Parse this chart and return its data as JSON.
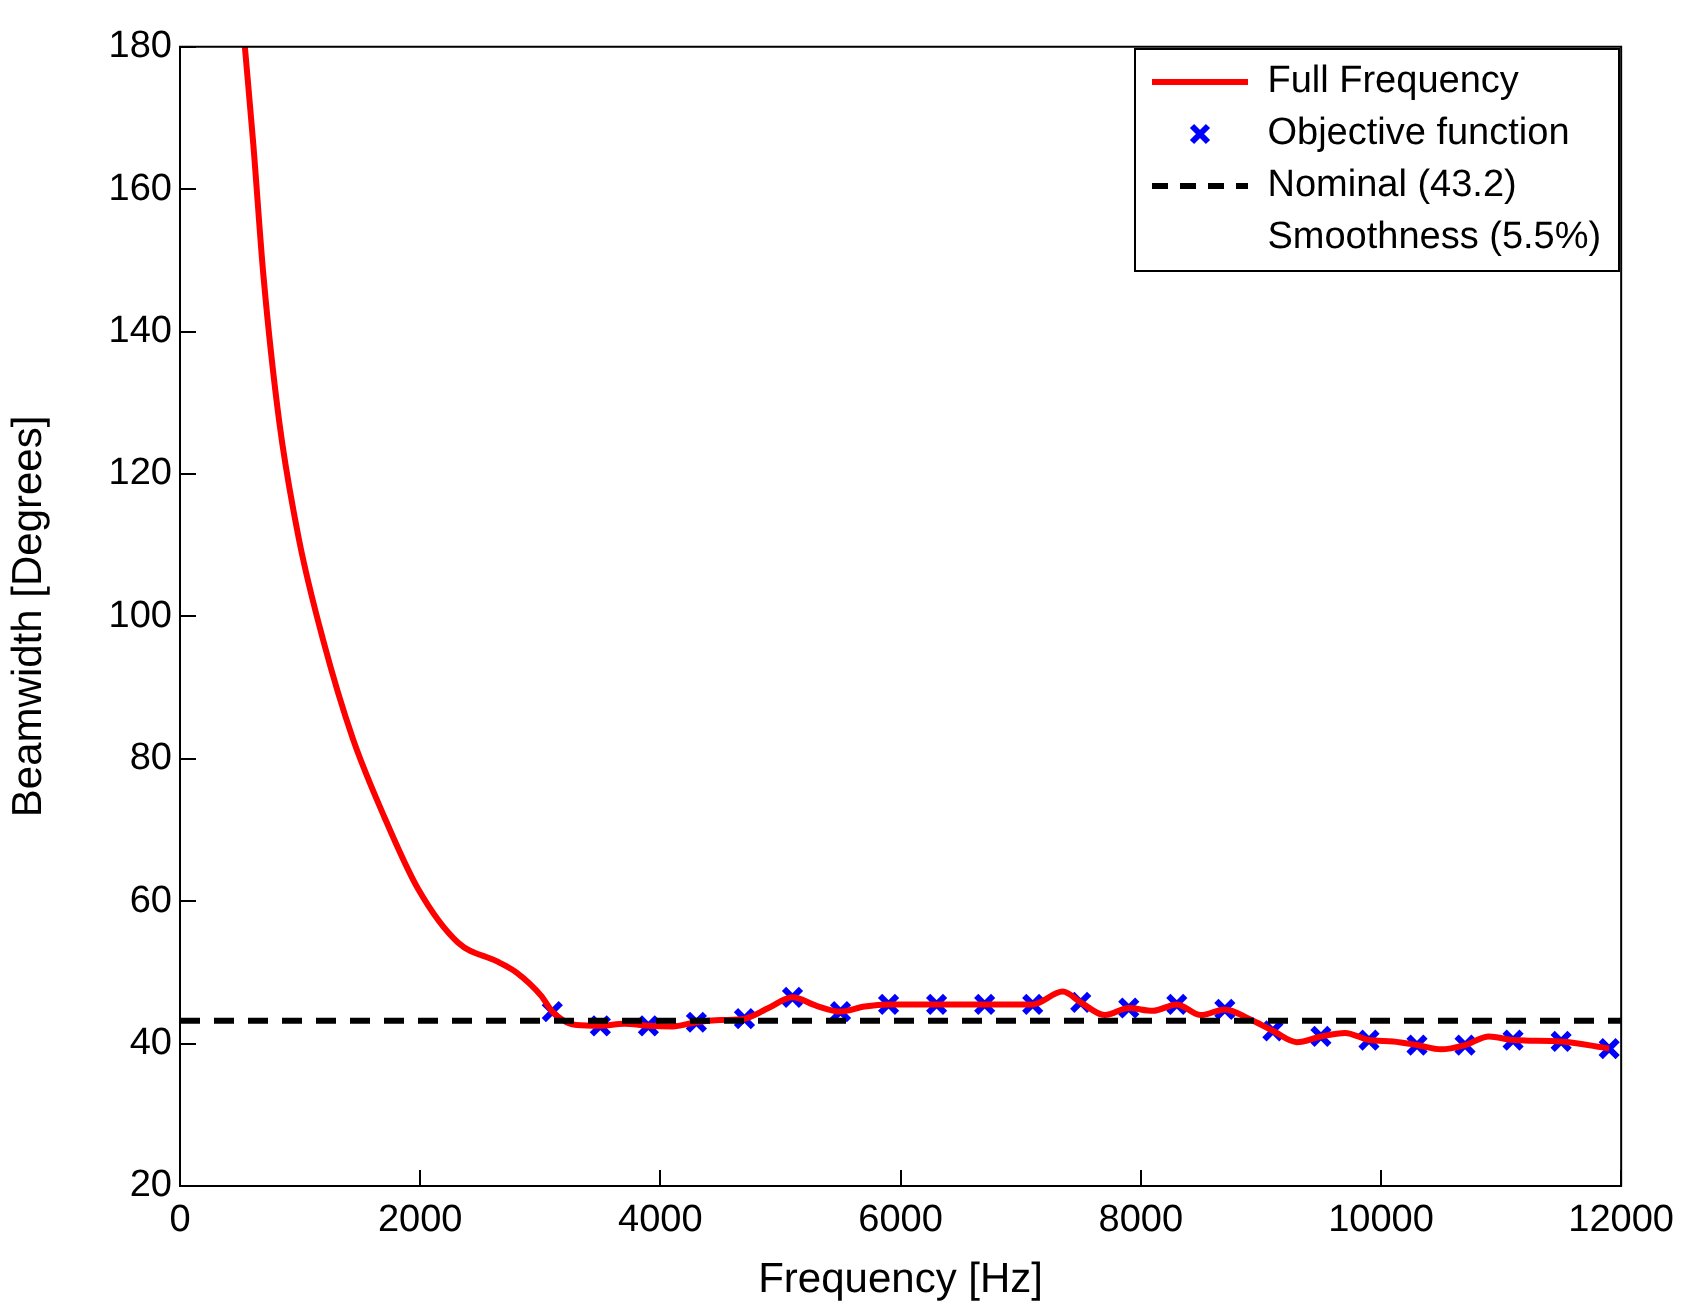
{
  "chart_data": {
    "type": "line",
    "xlabel": "Frequency [Hz]",
    "ylabel": "Beamwidth [Degrees]",
    "xlim": [
      0,
      12000
    ],
    "xticks": [
      0,
      2000,
      4000,
      6000,
      8000,
      10000,
      12000
    ],
    "ylim": [
      20,
      180
    ],
    "yticks": [
      20,
      40,
      60,
      80,
      100,
      120,
      140,
      160,
      180
    ],
    "grid": false,
    "legend": "top right",
    "series": [
      {
        "name": "Full Frequency",
        "color": "#ff0000",
        "marker": "none",
        "line_style": "solid",
        "x": [
          540,
          610,
          694,
          826,
          992,
          1190,
          1438,
          1702,
          1983,
          2314,
          2645,
          2800,
          3008,
          3100,
          3300,
          3500,
          3700,
          3900,
          4100,
          4300,
          4500,
          4700,
          4900,
          5100,
          5300,
          5500,
          5700,
          5900,
          6300,
          6700,
          7100,
          7350,
          7500,
          7700,
          7900,
          8100,
          8300,
          8500,
          8700,
          8900,
          9100,
          9300,
          9500,
          9700,
          9900,
          10100,
          10300,
          10500,
          10700,
          10900,
          11100,
          11500,
          11900
        ],
        "values": [
          180,
          166.4,
          148,
          127.4,
          110.7,
          96.8,
          82.9,
          71.8,
          61.7,
          54.2,
          51.5,
          50,
          46.7,
          44.5,
          42.6,
          42.5,
          42.8,
          42.5,
          42.4,
          43,
          43.3,
          43.5,
          45,
          46.5,
          45.3,
          44.5,
          45.2,
          45.5,
          45.5,
          45.5,
          45.5,
          47.3,
          45.8,
          44,
          45,
          44.6,
          45.5,
          44,
          44.8,
          43.5,
          41.8,
          40.2,
          41,
          41.5,
          40.5,
          40.3,
          39.8,
          39.2,
          39.8,
          41,
          40.5,
          40.3,
          39.3
        ]
      },
      {
        "name": "Objective function",
        "type": "scatter",
        "color": "#0000ff",
        "marker": "cross",
        "x": [
          3100,
          3500,
          3900,
          4300,
          4700,
          5100,
          5500,
          5900,
          6300,
          6700,
          7100,
          7500,
          7900,
          8300,
          8700,
          9100,
          9500,
          9900,
          10300,
          10700,
          11100,
          11500,
          11900
        ],
        "values": [
          44.5,
          42.5,
          42.5,
          43,
          43.5,
          46.5,
          44.5,
          45.5,
          45.5,
          45.5,
          45.5,
          45.8,
          45,
          45.5,
          44.8,
          41.8,
          41,
          40.5,
          39.8,
          39.8,
          40.5,
          40.3,
          39.3
        ]
      }
    ],
    "ref_lines": [
      {
        "axis": "y",
        "value": 43.2,
        "label": "Nominal (43.2)",
        "color": "#000000",
        "line_style": "dashed"
      }
    ],
    "annotations": [
      "Smoothness (5.5%)"
    ]
  }
}
